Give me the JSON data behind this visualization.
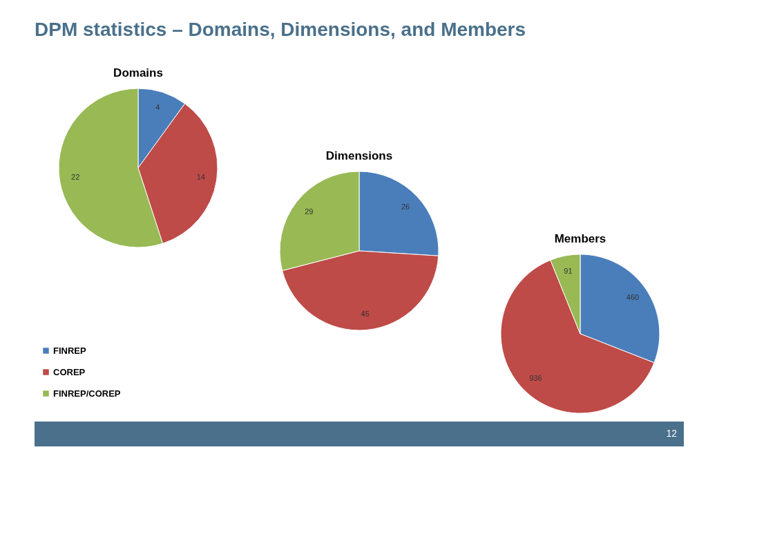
{
  "chart_data": [
    {
      "type": "pie",
      "title": "Domains",
      "annotations": [
        "DPM statistics – Domains, Dimensions, and Members",
        "12"
      ],
      "categories": [
        "FINREP",
        "COREP",
        "FINREP/COREP"
      ],
      "values": [
        4,
        14,
        22
      ],
      "colors": [
        "#4a7ebb",
        "#be4b48",
        "#98b954"
      ],
      "data_labels": true,
      "legend": "bottom left"
    },
    {
      "type": "pie",
      "title": "Dimensions",
      "categories": [
        null,
        null,
        null
      ],
      "values": [
        26,
        45,
        29
      ],
      "colors": [
        "#4a7ebb",
        "#be4b48",
        "#98b954"
      ],
      "data_labels": true
    },
    {
      "type": "pie",
      "title": "Members",
      "categories": [
        null,
        null,
        null
      ],
      "values": [
        460,
        936,
        91
      ],
      "colors": [
        "#4a7ebb",
        "#be4b48",
        "#98b954"
      ],
      "data_labels": true
    }
  ]
}
